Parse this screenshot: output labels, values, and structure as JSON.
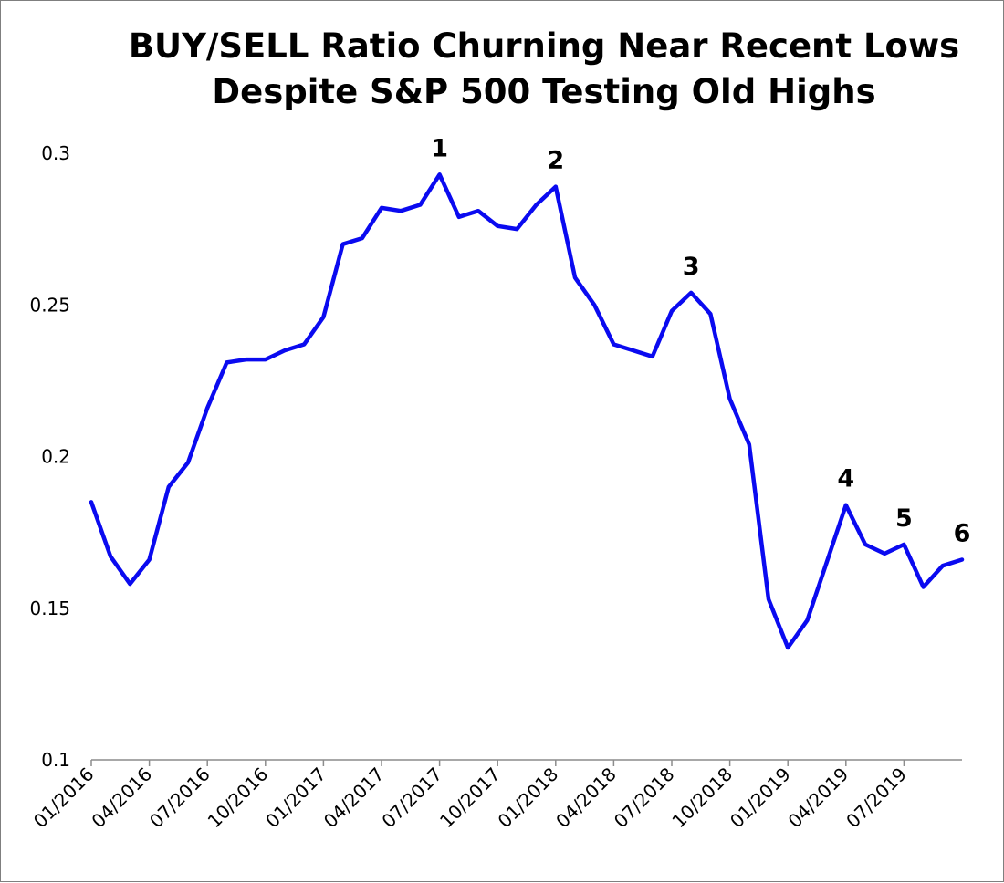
{
  "chart_data": {
    "type": "line",
    "title": "BUY/SELL Ratio Churning Near Recent Lows",
    "subtitle": "Despite S&P 500 Testing Old Highs",
    "xlabel": "",
    "ylabel": "",
    "ylim": [
      0.1,
      0.3
    ],
    "y_ticks": [
      "0.1",
      "0.15",
      "0.2",
      "0.25",
      "0.3"
    ],
    "x_tick_labels": [
      "01/2016",
      "04/2016",
      "07/2016",
      "10/2016",
      "01/2017",
      "04/2017",
      "07/2017",
      "10/2017",
      "01/2018",
      "04/2018",
      "07/2018",
      "10/2018",
      "01/2019",
      "04/2019",
      "07/2019"
    ],
    "grid": false,
    "legend": "none",
    "series": [
      {
        "color": "#0a0af0",
        "x": [
          "01/2016",
          "02/2016",
          "03/2016",
          "04/2016",
          "05/2016",
          "06/2016",
          "07/2016",
          "08/2016",
          "09/2016",
          "10/2016",
          "11/2016",
          "12/2016",
          "01/2017",
          "02/2017",
          "03/2017",
          "04/2017",
          "05/2017",
          "06/2017",
          "07/2017",
          "08/2017",
          "09/2017",
          "10/2017",
          "11/2017",
          "12/2017",
          "01/2018",
          "02/2018",
          "03/2018",
          "04/2018",
          "05/2018",
          "06/2018",
          "07/2018",
          "08/2018",
          "09/2018",
          "10/2018",
          "11/2018",
          "12/2018",
          "01/2019",
          "02/2019",
          "03/2019",
          "04/2019",
          "05/2019",
          "06/2019",
          "07/2019",
          "08/2019",
          "09/2019",
          "10/2019"
        ],
        "values": [
          0.185,
          0.167,
          0.158,
          0.166,
          0.19,
          0.198,
          0.216,
          0.231,
          0.232,
          0.232,
          0.235,
          0.237,
          0.246,
          0.27,
          0.272,
          0.282,
          0.281,
          0.283,
          0.293,
          0.279,
          0.281,
          0.276,
          0.275,
          0.283,
          0.289,
          0.259,
          0.25,
          0.237,
          0.235,
          0.233,
          0.248,
          0.254,
          0.247,
          0.219,
          0.204,
          0.153,
          0.137,
          0.146,
          0.165,
          0.184,
          0.171,
          0.168,
          0.171,
          0.157,
          0.164,
          0.166
        ]
      }
    ],
    "annotations": [
      {
        "label": "1",
        "x": "07/2017",
        "y": 0.293
      },
      {
        "label": "2",
        "x": "01/2018",
        "y": 0.289
      },
      {
        "label": "3",
        "x": "08/2018",
        "y": 0.254
      },
      {
        "label": "4",
        "x": "04/2019",
        "y": 0.184
      },
      {
        "label": "5",
        "x": "07/2019",
        "y": 0.171
      },
      {
        "label": "6",
        "x": "10/2019",
        "y": 0.166
      }
    ]
  }
}
